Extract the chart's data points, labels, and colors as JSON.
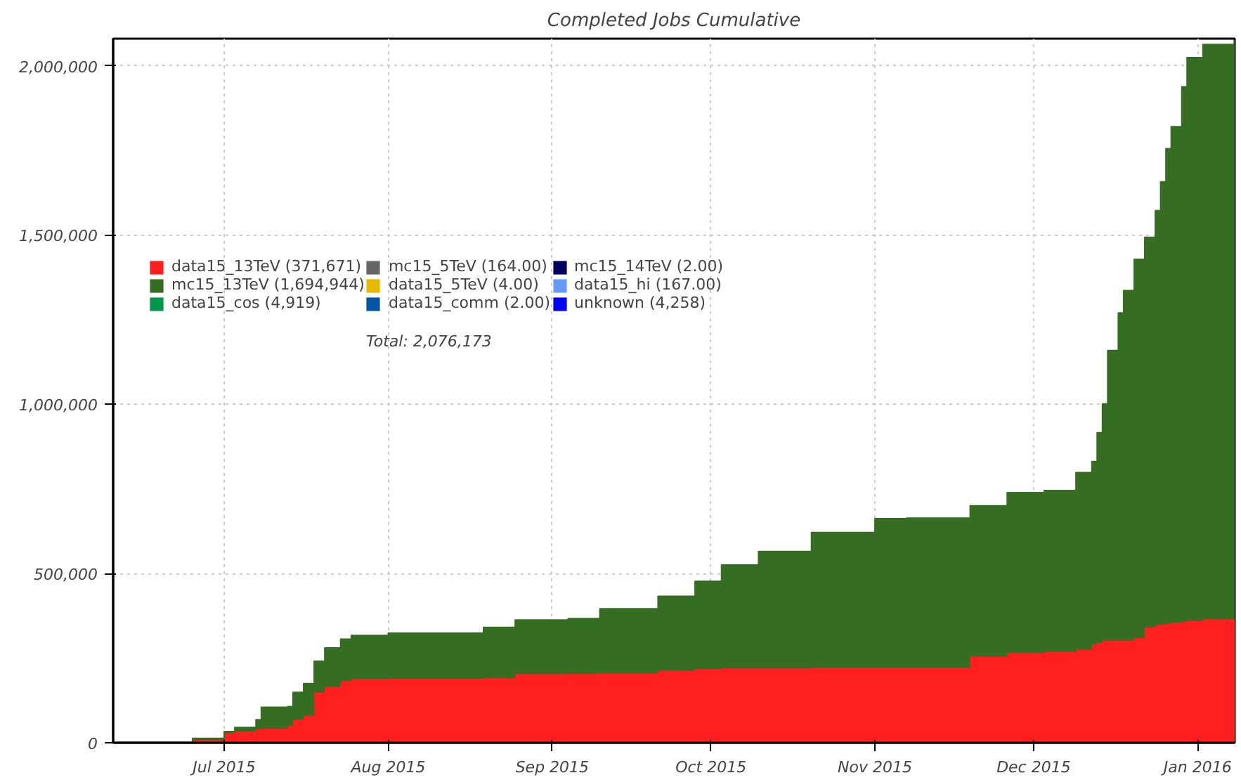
{
  "chart_data": {
    "type": "area",
    "title": "Completed Jobs Cumulative",
    "stacked": true,
    "x": [
      "2015-06-10",
      "2015-06-20",
      "2015-06-20",
      "2015-06-25",
      "2015-06-25",
      "2015-07-01",
      "2015-07-01",
      "2015-07-03",
      "2015-07-03",
      "2015-07-07",
      "2015-07-07",
      "2015-07-08",
      "2015-07-08",
      "2015-07-13",
      "2015-07-13",
      "2015-07-14",
      "2015-07-14",
      "2015-07-16",
      "2015-07-16",
      "2015-07-18",
      "2015-07-18",
      "2015-07-20",
      "2015-07-20",
      "2015-07-23",
      "2015-07-23",
      "2015-07-25",
      "2015-07-25",
      "2015-08-01",
      "2015-08-01",
      "2015-08-19",
      "2015-08-19",
      "2015-08-25",
      "2015-08-25",
      "2015-09-04",
      "2015-09-04",
      "2015-09-10",
      "2015-09-10",
      "2015-09-21",
      "2015-09-21",
      "2015-09-28",
      "2015-09-28",
      "2015-10-03",
      "2015-10-03",
      "2015-10-10",
      "2015-10-10",
      "2015-10-20",
      "2015-10-20",
      "2015-11-01",
      "2015-11-01",
      "2015-11-07",
      "2015-11-07",
      "2015-11-19",
      "2015-11-19",
      "2015-11-26",
      "2015-11-26",
      "2015-12-03",
      "2015-12-03",
      "2015-12-09",
      "2015-12-09",
      "2015-12-12",
      "2015-12-12",
      "2015-12-13",
      "2015-12-13",
      "2015-12-14",
      "2015-12-14",
      "2015-12-15",
      "2015-12-15",
      "2015-12-17",
      "2015-12-17",
      "2015-12-18",
      "2015-12-18",
      "2015-12-20",
      "2015-12-20",
      "2015-12-22",
      "2015-12-22",
      "2015-12-24",
      "2015-12-24",
      "2015-12-25",
      "2015-12-25",
      "2015-12-26",
      "2015-12-26",
      "2015-12-27",
      "2015-12-27",
      "2015-12-29",
      "2015-12-29",
      "2015-12-30",
      "2015-12-30",
      "2016-01-02",
      "2016-01-02",
      "2016-01-08",
      "2016-01-08"
    ],
    "series": [
      {
        "name": "data15_13TeV (371,671)",
        "color": "#ff1f1f",
        "values": [
          0,
          0,
          0,
          0,
          8000,
          8000,
          28000,
          28000,
          33000,
          33000,
          40000,
          40000,
          42000,
          42000,
          50000,
          50000,
          68000,
          68000,
          80000,
          80000,
          149000,
          149000,
          165000,
          165000,
          182000,
          182000,
          188000,
          188000,
          189000,
          189000,
          191000,
          191000,
          203000,
          203000,
          204000,
          204000,
          205000,
          205000,
          213000,
          213000,
          218000,
          218000,
          220000,
          220000,
          220000,
          220000,
          221000,
          221000,
          221000,
          221000,
          221000,
          221000,
          255000,
          255000,
          265000,
          265000,
          269000,
          269000,
          275000,
          275000,
          290000,
          290000,
          295000,
          295000,
          302000,
          302000,
          302000,
          302000,
          302000,
          302000,
          302000,
          302000,
          310000,
          310000,
          341000,
          341000,
          348000,
          348000,
          350000,
          350000,
          352000,
          352000,
          354000,
          354000,
          358000,
          358000,
          360000,
          360000,
          365000,
          365000,
          372000
        ]
      },
      {
        "name": "mc15_13TeV (1,694,944)",
        "color": "#356e23",
        "values": [
          0,
          0,
          0,
          0,
          5000,
          5000,
          5000,
          5000,
          12000,
          12000,
          28000,
          28000,
          63000,
          63000,
          57000,
          57000,
          81000,
          81000,
          95000,
          95000,
          92000,
          92000,
          115000,
          115000,
          124000,
          124000,
          129000,
          129000,
          135000,
          135000,
          150000,
          150000,
          160000,
          160000,
          163000,
          163000,
          191000,
          191000,
          220000,
          220000,
          259000,
          259000,
          305000,
          305000,
          345000,
          345000,
          400000,
          400000,
          441000,
          441000,
          443000,
          443000,
          445000,
          445000,
          474000,
          474000,
          476000,
          476000,
          523000,
          523000,
          541000,
          541000,
          621000,
          621000,
          699000,
          699000,
          857000,
          857000,
          968000,
          968000,
          1034000,
          1034000,
          1118000,
          1118000,
          1152000,
          1152000,
          1224000,
          1224000,
          1307000,
          1307000,
          1403000,
          1403000,
          1466000,
          1466000,
          1580000,
          1580000,
          1664000,
          1664000,
          1698000,
          1698000,
          1704000
        ]
      },
      {
        "name": "data15_cos (4,919)",
        "color": "#00964b",
        "values": [
          null,
          null,
          null,
          null,
          null,
          null,
          null,
          null,
          null,
          null,
          null,
          null,
          null,
          null,
          null,
          null,
          null,
          null,
          null,
          null,
          null,
          null,
          null,
          null,
          null,
          null,
          null,
          null,
          null,
          null,
          null,
          null,
          null,
          null,
          null,
          null,
          null,
          null,
          null,
          null,
          null,
          null,
          null,
          null,
          null,
          null,
          null,
          null,
          null,
          null,
          null,
          null,
          null,
          null,
          null,
          null,
          null,
          null,
          null,
          null,
          null,
          null,
          null,
          null,
          null,
          null,
          null,
          null,
          null,
          null,
          null,
          null,
          null,
          null,
          null,
          null,
          null,
          null,
          null,
          null,
          null,
          null,
          null,
          null,
          null,
          null,
          null,
          null,
          null,
          null,
          null
        ]
      },
      {
        "name": "mc15_5TeV (164.00)",
        "color": "#666666",
        "values": [
          null,
          null,
          null,
          null,
          null,
          null,
          null,
          null,
          null,
          null,
          null,
          null,
          null,
          null,
          null,
          null,
          null,
          null,
          null,
          null,
          null,
          null,
          null,
          null,
          null,
          null,
          null,
          null,
          null,
          null,
          null,
          null,
          null,
          null,
          null,
          null,
          null,
          null,
          null,
          null,
          null,
          null,
          null,
          null,
          null,
          null,
          null,
          null,
          null,
          null,
          null,
          null,
          null,
          null,
          null,
          null,
          null,
          null,
          null,
          null,
          null,
          null,
          null,
          null,
          null,
          null,
          null,
          null,
          null,
          null,
          null,
          null,
          null,
          null,
          null,
          null,
          null,
          null,
          null,
          null,
          null,
          null,
          null,
          null,
          null,
          null,
          null,
          null,
          null,
          null,
          null
        ]
      },
      {
        "name": "data15_5TeV (4.00)",
        "color": "#e6b800",
        "values": [
          null,
          null,
          null,
          null,
          null,
          null,
          null,
          null,
          null,
          null,
          null,
          null,
          null,
          null,
          null,
          null,
          null,
          null,
          null,
          null,
          null,
          null,
          null,
          null,
          null,
          null,
          null,
          null,
          null,
          null,
          null,
          null,
          null,
          null,
          null,
          null,
          null,
          null,
          null,
          null,
          null,
          null,
          null,
          null,
          null,
          null,
          null,
          null,
          null,
          null,
          null,
          null,
          null,
          null,
          null,
          null,
          null,
          null,
          null,
          null,
          null,
          null,
          null,
          null,
          null,
          null,
          null,
          null,
          null,
          null,
          null,
          null,
          null,
          null,
          null,
          null,
          null,
          null,
          null,
          null,
          null,
          null,
          null,
          null,
          null,
          null,
          null,
          null,
          null,
          null,
          null
        ]
      },
      {
        "name": "data15_comm (2.00)",
        "color": "#0055a4",
        "values": [
          null,
          null,
          null,
          null,
          null,
          null,
          null,
          null,
          null,
          null,
          null,
          null,
          null,
          null,
          null,
          null,
          null,
          null,
          null,
          null,
          null,
          null,
          null,
          null,
          null,
          null,
          null,
          null,
          null,
          null,
          null,
          null,
          null,
          null,
          null,
          null,
          null,
          null,
          null,
          null,
          null,
          null,
          null,
          null,
          null,
          null,
          null,
          null,
          null,
          null,
          null,
          null,
          null,
          null,
          null,
          null,
          null,
          null,
          null,
          null,
          null,
          null,
          null,
          null,
          null,
          null,
          null,
          null,
          null,
          null,
          null,
          null,
          null,
          null,
          null,
          null,
          null,
          null,
          null,
          null,
          null,
          null,
          null,
          null,
          null,
          null,
          null,
          null,
          null,
          null,
          null
        ]
      },
      {
        "name": "mc15_14TeV (2.00)",
        "color": "#000060",
        "values": [
          null,
          null,
          null,
          null,
          null,
          null,
          null,
          null,
          null,
          null,
          null,
          null,
          null,
          null,
          null,
          null,
          null,
          null,
          null,
          null,
          null,
          null,
          null,
          null,
          null,
          null,
          null,
          null,
          null,
          null,
          null,
          null,
          null,
          null,
          null,
          null,
          null,
          null,
          null,
          null,
          null,
          null,
          null,
          null,
          null,
          null,
          null,
          null,
          null,
          null,
          null,
          null,
          null,
          null,
          null,
          null,
          null,
          null,
          null,
          null,
          null,
          null,
          null,
          null,
          null,
          null,
          null,
          null,
          null,
          null,
          null,
          null,
          null,
          null,
          null,
          null,
          null,
          null,
          null,
          null,
          null,
          null,
          null,
          null,
          null,
          null,
          null,
          null,
          null,
          null,
          null
        ]
      },
      {
        "name": "data15_hi (167.00)",
        "color": "#6699ff",
        "values": [
          null,
          null,
          null,
          null,
          null,
          null,
          null,
          null,
          null,
          null,
          null,
          null,
          null,
          null,
          null,
          null,
          null,
          null,
          null,
          null,
          null,
          null,
          null,
          null,
          null,
          null,
          null,
          null,
          null,
          null,
          null,
          null,
          null,
          null,
          null,
          null,
          null,
          null,
          null,
          null,
          null,
          null,
          null,
          null,
          null,
          null,
          null,
          null,
          null,
          null,
          null,
          null,
          null,
          null,
          null,
          null,
          null,
          null,
          null,
          null,
          null,
          null,
          null,
          null,
          null,
          null,
          null,
          null,
          null,
          null,
          null,
          null,
          null,
          null,
          null,
          null,
          null,
          null,
          null,
          null,
          null,
          null,
          null,
          null,
          null,
          null,
          null,
          null,
          null,
          null,
          null
        ]
      },
      {
        "name": "unknown (4,258)",
        "color": "#0000ff",
        "values": [
          null,
          null,
          null,
          null,
          null,
          null,
          null,
          null,
          null,
          null,
          null,
          null,
          null,
          null,
          null,
          null,
          null,
          null,
          null,
          null,
          null,
          null,
          null,
          null,
          null,
          null,
          null,
          null,
          null,
          null,
          null,
          null,
          null,
          null,
          null,
          null,
          null,
          null,
          null,
          null,
          null,
          null,
          null,
          null,
          null,
          null,
          null,
          null,
          null,
          null,
          null,
          null,
          null,
          null,
          null,
          null,
          null,
          null,
          null,
          null,
          null,
          null,
          null,
          null,
          null,
          null,
          null,
          null,
          null,
          null,
          null,
          null,
          null,
          null,
          null,
          null,
          null,
          null,
          null,
          null,
          null,
          null,
          null,
          null,
          null,
          null,
          null,
          null,
          null,
          null,
          null
        ]
      }
    ],
    "annotations": [
      "Total: 2,076,173"
    ],
    "xlim": [
      "2015-06-10",
      "2016-01-08"
    ],
    "ylim": [
      0,
      2080000
    ],
    "xticks": [
      {
        "value": "2015-07-01",
        "label": "Jul 2015"
      },
      {
        "value": "2015-08-01",
        "label": "Aug 2015"
      },
      {
        "value": "2015-09-01",
        "label": "Sep 2015"
      },
      {
        "value": "2015-10-01",
        "label": "Oct 2015"
      },
      {
        "value": "2015-11-01",
        "label": "Nov 2015"
      },
      {
        "value": "2015-12-01",
        "label": "Dec 2015"
      },
      {
        "value": "2016-01-01",
        "label": "Jan 2016"
      }
    ],
    "yticks": [
      0,
      {
        "value": 500000,
        "label": "500,000"
      },
      {
        "value": 1000000,
        "label": "1,000,000"
      },
      {
        "value": 1500000,
        "label": "1,500,000"
      },
      {
        "value": 2000000,
        "label": "2,000,000"
      }
    ],
    "grid": true,
    "legend": "top left"
  }
}
